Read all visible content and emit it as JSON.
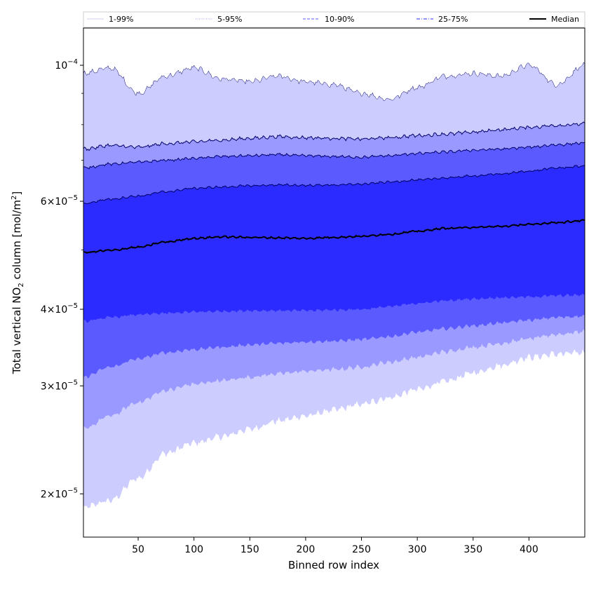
{
  "chart_data": {
    "type": "area",
    "xlabel": "Binned row index",
    "ylabel_main": "Total vertical NO",
    "ylabel_sub": "2",
    "ylabel_rest": " column [mol/m",
    "ylabel_sup": "2",
    "ylabel_end": "]",
    "yscale": "log",
    "xlim": [
      1,
      450
    ],
    "ylim": [
      1.7e-05,
      0.000115
    ],
    "x_ticks": [
      50,
      100,
      150,
      200,
      250,
      300,
      350,
      400
    ],
    "y_ticks": [
      {
        "value": 2e-05,
        "mant": "2",
        "exp": "−5"
      },
      {
        "value": 3e-05,
        "mant": "3",
        "exp": "−5"
      },
      {
        "value": 4e-05,
        "mant": "4",
        "exp": "−5"
      },
      {
        "value": 6e-05,
        "mant": "6",
        "exp": "−5"
      },
      {
        "value": 0.0001,
        "mant": "10",
        "exp": "−4",
        "plain": true
      }
    ],
    "y_minor_ticks": [
      5e-05,
      7e-05,
      8e-05,
      9e-05
    ],
    "x": [
      1,
      25,
      50,
      75,
      100,
      125,
      150,
      175,
      200,
      225,
      250,
      275,
      300,
      325,
      350,
      375,
      400,
      425,
      450
    ],
    "bands": [
      {
        "name": "1-99%",
        "color": "#ccccff",
        "linestyle": "solid",
        "lower": [
          1.9e-05,
          1.95e-05,
          2.12e-05,
          2.33e-05,
          2.42e-05,
          2.48e-05,
          2.55e-05,
          2.63e-05,
          2.68e-05,
          2.74e-05,
          2.8e-05,
          2.87e-05,
          2.96e-05,
          3.05e-05,
          3.15e-05,
          3.24e-05,
          3.34e-05,
          3.38e-05,
          3.4e-05
        ],
        "upper": [
          9.7e-05,
          9.9e-05,
          9e-05,
          9.6e-05,
          9.9e-05,
          9.5e-05,
          9.4e-05,
          9.6e-05,
          9.4e-05,
          9.3e-05,
          9e-05,
          8.8e-05,
          9.2e-05,
          9.6e-05,
          9.7e-05,
          9.6e-05,
          0.0001,
          9.3e-05,
          0.0001
        ]
      },
      {
        "name": "5-95%",
        "color": "#9999ff",
        "linestyle": "dotted",
        "lower": [
          2.55e-05,
          2.68e-05,
          2.82e-05,
          2.95e-05,
          3.02e-05,
          3.06e-05,
          3.1e-05,
          3.14e-05,
          3.17e-05,
          3.19e-05,
          3.22e-05,
          3.28e-05,
          3.34e-05,
          3.41e-05,
          3.47e-05,
          3.52e-05,
          3.58e-05,
          3.64e-05,
          3.68e-05
        ],
        "upper": [
          7.3e-05,
          7.4e-05,
          7.35e-05,
          7.45e-05,
          7.5e-05,
          7.55e-05,
          7.6e-05,
          7.65e-05,
          7.62e-05,
          7.6e-05,
          7.58e-05,
          7.62e-05,
          7.68e-05,
          7.72e-05,
          7.78e-05,
          7.85e-05,
          7.92e-05,
          7.98e-05,
          8.02e-05
        ]
      },
      {
        "name": "10-90%",
        "color": "#5a5aff",
        "linestyle": "dashed",
        "lower": [
          3.1e-05,
          3.22e-05,
          3.32e-05,
          3.4e-05,
          3.44e-05,
          3.47e-05,
          3.5e-05,
          3.52e-05,
          3.54e-05,
          3.55e-05,
          3.57e-05,
          3.61e-05,
          3.67e-05,
          3.72e-05,
          3.76e-05,
          3.8e-05,
          3.84e-05,
          3.88e-05,
          3.9e-05
        ],
        "upper": [
          6.8e-05,
          6.9e-05,
          6.95e-05,
          7e-05,
          7.05e-05,
          7.1e-05,
          7.12e-05,
          7.15e-05,
          7.12e-05,
          7.1e-05,
          7.08e-05,
          7.12e-05,
          7.18e-05,
          7.22e-05,
          7.27e-05,
          7.3e-05,
          7.35e-05,
          7.42e-05,
          7.47e-05
        ]
      },
      {
        "name": "25-75%",
        "color": "#2b2bff",
        "linestyle": "dashdot",
        "lower": [
          3.82e-05,
          3.88e-05,
          3.92e-05,
          3.94e-05,
          3.96e-05,
          3.97e-05,
          3.98e-05,
          3.98e-05,
          3.98e-05,
          3.99e-05,
          4e-05,
          4.04e-05,
          4.09e-05,
          4.13e-05,
          4.16e-05,
          4.18e-05,
          4.19e-05,
          4.21e-05,
          4.22e-05
        ],
        "upper": [
          5.95e-05,
          6.05e-05,
          6.12e-05,
          6.22e-05,
          6.3e-05,
          6.33e-05,
          6.36e-05,
          6.38e-05,
          6.37e-05,
          6.38e-05,
          6.4e-05,
          6.45e-05,
          6.5e-05,
          6.55e-05,
          6.6e-05,
          6.65e-05,
          6.72e-05,
          6.8e-05,
          6.85e-05
        ]
      }
    ],
    "median": {
      "name": "Median",
      "color": "#000000",
      "values": [
        4.95e-05,
        4.99e-05,
        5.05e-05,
        5.15e-05,
        5.22e-05,
        5.25e-05,
        5.24e-05,
        5.23e-05,
        5.22e-05,
        5.24e-05,
        5.26e-05,
        5.3e-05,
        5.36e-05,
        5.42e-05,
        5.44e-05,
        5.46e-05,
        5.5e-05,
        5.54e-05,
        5.58e-05
      ]
    },
    "legend_position": "top, above plot area (horizontal)"
  }
}
